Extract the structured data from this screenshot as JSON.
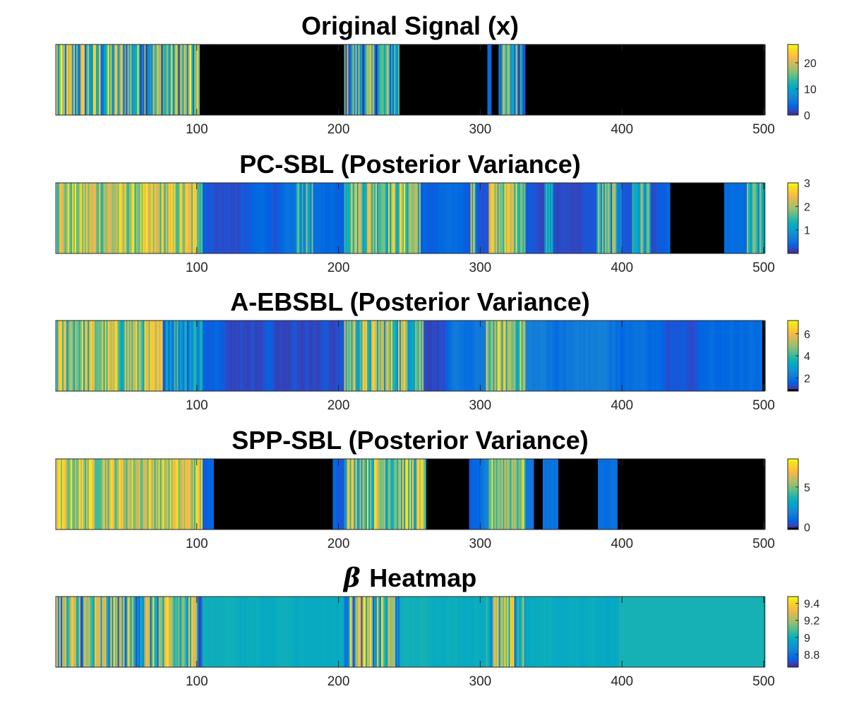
{
  "chart_data": [
    {
      "type": "heatmap",
      "title": "Original Signal (x)",
      "xlim": [
        1,
        500
      ],
      "xticks": [
        100,
        200,
        300,
        400,
        500
      ],
      "clim": [
        0,
        27
      ],
      "colorbar_ticks": [
        0,
        10,
        20
      ],
      "black_below": 0.01,
      "segments": [
        {
          "range": [
            1,
            102
          ],
          "type": "noisy",
          "min": 0,
          "max": 27
        },
        {
          "range": [
            102,
            204
          ],
          "type": "const",
          "value": 0
        },
        {
          "range": [
            204,
            243
          ],
          "type": "noisy",
          "min": 0,
          "max": 22
        },
        {
          "range": [
            243,
            305
          ],
          "type": "const",
          "value": 0
        },
        {
          "range": [
            305,
            308
          ],
          "type": "noisy",
          "min": 0,
          "max": 12
        },
        {
          "range": [
            308,
            313
          ],
          "type": "const",
          "value": 0
        },
        {
          "range": [
            313,
            332
          ],
          "type": "noisy",
          "min": 0,
          "max": 22
        },
        {
          "range": [
            332,
            501
          ],
          "type": "const",
          "value": 0
        }
      ],
      "tick_marks": [
        100,
        200,
        300,
        400
      ]
    },
    {
      "type": "heatmap",
      "title": "PC-SBL (Posterior Variance)",
      "xlim": [
        1,
        500
      ],
      "xticks": [
        100,
        200,
        300,
        400,
        500
      ],
      "clim": [
        0,
        3
      ],
      "colorbar_ticks": [
        1,
        2,
        3
      ],
      "black_below": -1,
      "segments": [
        {
          "range": [
            1,
            104
          ],
          "type": "noisy",
          "min": 1.3,
          "max": 2.9
        },
        {
          "range": [
            104,
            170
          ],
          "type": "smooth",
          "min": 0.2,
          "max": 0.55
        },
        {
          "range": [
            170,
            182
          ],
          "type": "noisy",
          "min": 0.5,
          "max": 2.0
        },
        {
          "range": [
            182,
            204
          ],
          "type": "smooth",
          "min": 0.2,
          "max": 0.5
        },
        {
          "range": [
            204,
            258
          ],
          "type": "noisy",
          "min": 1.0,
          "max": 2.9
        },
        {
          "range": [
            258,
            293
          ],
          "type": "smooth",
          "min": 0.15,
          "max": 0.5
        },
        {
          "range": [
            293,
            297
          ],
          "type": "noisy",
          "min": 0.3,
          "max": 3.0
        },
        {
          "range": [
            297,
            306
          ],
          "type": "smooth",
          "min": 0.2,
          "max": 0.5
        },
        {
          "range": [
            306,
            332
          ],
          "type": "noisy",
          "min": 1.2,
          "max": 2.9
        },
        {
          "range": [
            332,
            345
          ],
          "type": "smooth",
          "min": 0.2,
          "max": 0.5
        },
        {
          "range": [
            345,
            352
          ],
          "type": "noisy",
          "min": 0.4,
          "max": 1.5
        },
        {
          "range": [
            352,
            382
          ],
          "type": "smooth",
          "min": 0.2,
          "max": 0.5
        },
        {
          "range": [
            382,
            400
          ],
          "type": "noisy",
          "min": 0.4,
          "max": 2.2
        },
        {
          "range": [
            400,
            407
          ],
          "type": "smooth",
          "min": 0.2,
          "max": 0.5
        },
        {
          "range": [
            407,
            420
          ],
          "type": "noisy",
          "min": 0.5,
          "max": 2.2
        },
        {
          "range": [
            420,
            434
          ],
          "type": "smooth",
          "min": 0.2,
          "max": 0.5
        },
        {
          "range": [
            434,
            472
          ],
          "type": "black"
        },
        {
          "range": [
            472,
            488
          ],
          "type": "smooth",
          "min": 0.2,
          "max": 0.5
        },
        {
          "range": [
            488,
            501
          ],
          "type": "noisy",
          "min": 0.5,
          "max": 2.0
        }
      ],
      "tick_marks": [
        100,
        200,
        300,
        400
      ]
    },
    {
      "type": "heatmap",
      "title": "A-EBSBL (Posterior Variance)",
      "xlim": [
        1,
        500
      ],
      "xticks": [
        100,
        200,
        300,
        400,
        500
      ],
      "clim": [
        0.8,
        7.2
      ],
      "colorbar_ticks": [
        2,
        4,
        6
      ],
      "black_below": 1.02,
      "segments": [
        {
          "range": [
            1,
            76
          ],
          "type": "noisy",
          "min": 3.0,
          "max": 6.9
        },
        {
          "range": [
            76,
            104
          ],
          "type": "noisy",
          "min": 1.5,
          "max": 5.0
        },
        {
          "range": [
            104,
            204
          ],
          "type": "smooth",
          "min": 1.2,
          "max": 2.2
        },
        {
          "range": [
            204,
            260
          ],
          "type": "noisy",
          "min": 2.5,
          "max": 6.8
        },
        {
          "range": [
            260,
            304
          ],
          "type": "smooth",
          "min": 1.2,
          "max": 2.2
        },
        {
          "range": [
            304,
            332
          ],
          "type": "noisy",
          "min": 3.0,
          "max": 6.8
        },
        {
          "range": [
            332,
            399
          ],
          "type": "smooth",
          "min": 1.2,
          "max": 2.3
        },
        {
          "range": [
            399,
            499
          ],
          "type": "smooth",
          "min": 1.3,
          "max": 2.0
        },
        {
          "range": [
            499,
            501
          ],
          "type": "black"
        }
      ],
      "tick_marks": [
        100,
        200,
        300,
        400
      ]
    },
    {
      "type": "heatmap",
      "title": "SPP-SBL (Posterior Variance)",
      "xlim": [
        1,
        500
      ],
      "xticks": [
        100,
        200,
        300,
        400,
        500
      ],
      "clim": [
        -0.3,
        8.5
      ],
      "colorbar_ticks": [
        0,
        5
      ],
      "black_below": 0.01,
      "segments": [
        {
          "range": [
            1,
            104
          ],
          "type": "noisy",
          "min": 4.0,
          "max": 8.3
        },
        {
          "range": [
            104,
            112
          ],
          "type": "smooth",
          "min": 0.5,
          "max": 1.2
        },
        {
          "range": [
            112,
            196
          ],
          "type": "const",
          "value": 0
        },
        {
          "range": [
            196,
            204
          ],
          "type": "smooth",
          "min": 0.5,
          "max": 1.5
        },
        {
          "range": [
            204,
            262
          ],
          "type": "noisy",
          "min": 2.5,
          "max": 8.3
        },
        {
          "range": [
            262,
            292
          ],
          "type": "const",
          "value": 0
        },
        {
          "range": [
            292,
            306
          ],
          "type": "smooth",
          "min": 0.5,
          "max": 2.0
        },
        {
          "range": [
            306,
            332
          ],
          "type": "noisy",
          "min": 3.0,
          "max": 8.3
        },
        {
          "range": [
            332,
            338
          ],
          "type": "smooth",
          "min": 0.5,
          "max": 1.5
        },
        {
          "range": [
            338,
            344
          ],
          "type": "const",
          "value": 0
        },
        {
          "range": [
            344,
            355
          ],
          "type": "smooth",
          "min": 0.5,
          "max": 1.5
        },
        {
          "range": [
            355,
            383
          ],
          "type": "const",
          "value": 0
        },
        {
          "range": [
            383,
            397
          ],
          "type": "smooth",
          "min": 0.5,
          "max": 1.5
        },
        {
          "range": [
            397,
            501
          ],
          "type": "const",
          "value": 0
        }
      ],
      "tick_marks": [
        100,
        200,
        300,
        400
      ]
    },
    {
      "type": "heatmap",
      "title_symbol": "β",
      "title": "Heatmap",
      "xlim": [
        1,
        500
      ],
      "xticks": [
        100,
        200,
        300,
        400,
        500
      ],
      "clim": [
        8.65,
        9.48
      ],
      "colorbar_ticks": [
        8.8,
        9,
        9.2,
        9.4
      ],
      "colorbar_labels": [
        "8.8",
        "9",
        "9.2",
        "9.4"
      ],
      "black_below": -100,
      "segments": [
        {
          "range": [
            1,
            104
          ],
          "type": "noisy",
          "min": 8.7,
          "max": 9.45
        },
        {
          "range": [
            104,
            204
          ],
          "type": "smooth",
          "min": 8.98,
          "max": 9.05
        },
        {
          "range": [
            204,
            243
          ],
          "type": "noisy",
          "min": 8.7,
          "max": 9.45
        },
        {
          "range": [
            243,
            304
          ],
          "type": "smooth",
          "min": 8.98,
          "max": 9.05
        },
        {
          "range": [
            304,
            332
          ],
          "type": "noisy",
          "min": 8.7,
          "max": 9.45
        },
        {
          "range": [
            332,
            398
          ],
          "type": "smooth",
          "min": 8.97,
          "max": 9.05
        },
        {
          "range": [
            398,
            501
          ],
          "type": "const",
          "value": 9.02
        }
      ],
      "tick_marks": [
        100,
        200,
        300,
        400
      ]
    }
  ]
}
